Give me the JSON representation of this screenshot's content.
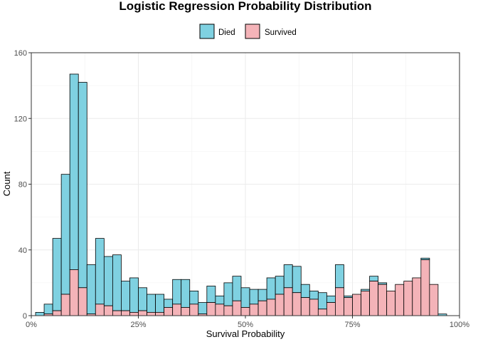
{
  "chart_data": {
    "type": "bar",
    "stacked": true,
    "title": "Logistic Regression Probability Distribution",
    "xlabel": "Survival Probability",
    "ylabel": "Count",
    "xlim": [
      0,
      1
    ],
    "ylim": [
      0,
      160
    ],
    "x_ticks": [
      {
        "value": 0,
        "label": "0%"
      },
      {
        "value": 0.25,
        "label": "25%"
      },
      {
        "value": 0.5,
        "label": "50%"
      },
      {
        "value": 0.75,
        "label": "75%"
      },
      {
        "value": 1,
        "label": "100%"
      }
    ],
    "y_ticks": [
      {
        "value": 0,
        "label": "0"
      },
      {
        "value": 40,
        "label": "40"
      },
      {
        "value": 80,
        "label": "80"
      },
      {
        "value": 120,
        "label": "120"
      },
      {
        "value": 160,
        "label": "160"
      }
    ],
    "grid": true,
    "legend_position": "top",
    "bin_width": 0.02,
    "bin_starts": [
      0.01,
      0.03,
      0.05,
      0.07,
      0.09,
      0.11,
      0.13,
      0.15,
      0.17,
      0.19,
      0.21,
      0.23,
      0.25,
      0.27,
      0.29,
      0.31,
      0.33,
      0.35,
      0.37,
      0.39,
      0.41,
      0.43,
      0.45,
      0.47,
      0.49,
      0.51,
      0.53,
      0.55,
      0.57,
      0.59,
      0.61,
      0.63,
      0.65,
      0.67,
      0.69,
      0.71,
      0.73,
      0.75,
      0.77,
      0.79,
      0.81,
      0.83,
      0.85,
      0.87,
      0.89,
      0.91,
      0.93,
      0.95
    ],
    "series": [
      {
        "name": "Survived",
        "color": "#f4b3b8",
        "values": [
          0,
          1,
          3,
          13,
          28,
          17,
          1,
          7,
          6,
          3,
          3,
          2,
          3,
          2,
          2,
          5,
          7,
          5,
          7,
          1,
          8,
          7,
          6,
          9,
          5,
          7,
          9,
          10,
          13,
          17,
          14,
          11,
          10,
          4,
          8,
          17,
          11,
          13,
          15,
          21,
          19,
          15,
          19,
          21,
          23,
          34,
          19,
          0
        ]
      },
      {
        "name": "Died",
        "color": "#7fd1e1",
        "values": [
          2,
          6,
          44,
          73,
          119,
          125,
          30,
          40,
          30,
          34,
          18,
          21,
          14,
          11,
          11,
          5,
          15,
          17,
          8,
          7,
          10,
          5,
          14,
          15,
          12,
          9,
          7,
          13,
          11,
          14,
          16,
          8,
          5,
          10,
          4,
          14,
          1,
          0,
          1,
          3,
          1,
          0,
          0,
          0,
          0,
          1,
          0,
          1
        ]
      }
    ]
  }
}
